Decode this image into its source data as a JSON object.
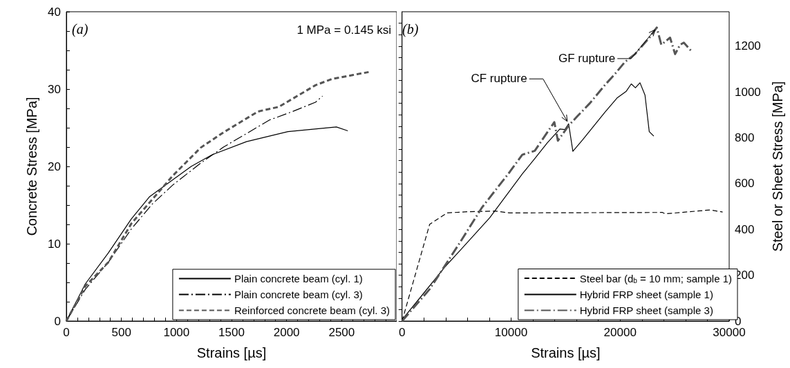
{
  "chart_data": [
    {
      "type": "line",
      "xlabel": "Strains [µs]",
      "ylabel": "Concrete Stress [MPa]",
      "annotations": [
        "(a)",
        "1 MPa = 0.145 ksi"
      ],
      "xlim": [
        0,
        3000
      ],
      "ylim": [
        0,
        40
      ],
      "legend": "bottom right",
      "grid": false,
      "marker": "none",
      "xticks": [
        0,
        {
          "value": 100,
          "label": null
        },
        {
          "value": 200,
          "label": null
        },
        {
          "value": 300,
          "label": null
        },
        {
          "value": 400,
          "label": null
        },
        500,
        {
          "value": 600,
          "label": null
        },
        {
          "value": 700,
          "label": null
        },
        {
          "value": 800,
          "label": null
        },
        {
          "value": 900,
          "label": null
        },
        1000,
        {
          "value": 1100,
          "label": null
        },
        {
          "value": 1200,
          "label": null
        },
        {
          "value": 1300,
          "label": null
        },
        {
          "value": 1400,
          "label": null
        },
        1500,
        {
          "value": 1600,
          "label": null
        },
        {
          "value": 1700,
          "label": null
        },
        {
          "value": 1800,
          "label": null
        },
        {
          "value": 1900,
          "label": null
        },
        2000,
        {
          "value": 2100,
          "label": null
        },
        {
          "value": 2200,
          "label": null
        },
        {
          "value": 2300,
          "label": null
        },
        {
          "value": 2400,
          "label": null
        },
        2500,
        {
          "value": 2600,
          "label": null
        },
        {
          "value": 2700,
          "label": null
        },
        {
          "value": 2800,
          "label": null
        },
        {
          "value": 2900,
          "label": null
        },
        {
          "value": 3000,
          "label": null
        }
      ],
      "yticks": [
        0,
        {
          "value": 2.5,
          "label": null
        },
        {
          "value": 5,
          "label": null
        },
        {
          "value": 7.5,
          "label": null
        },
        10,
        {
          "value": 12.5,
          "label": null
        },
        {
          "value": 15,
          "label": null
        },
        {
          "value": 17.5,
          "label": null
        },
        20,
        {
          "value": 22.5,
          "label": null
        },
        {
          "value": 25,
          "label": null
        },
        {
          "value": 27.5,
          "label": null
        },
        30,
        {
          "value": 32.5,
          "label": null
        },
        {
          "value": 35,
          "label": null
        },
        {
          "value": 37.5,
          "label": null
        },
        40
      ],
      "series": [
        {
          "name": "Plain concrete beam (cyl. 1)",
          "color": "#000000",
          "line_style": "solid",
          "x": [
            0,
            172,
            381,
            590,
            757,
            1134,
            1322,
            1636,
            2012,
            2452,
            2556
          ],
          "values": [
            0,
            4.8,
            8.8,
            13.2,
            16.1,
            20.0,
            21.5,
            23.2,
            24.5,
            25.1,
            24.6
          ]
        },
        {
          "name": "Plain concrete beam (cyl. 3)",
          "color": "#000000",
          "line_style": "dashdot",
          "x": [
            0,
            172,
            381,
            590,
            778,
            967,
            1218,
            1427,
            1678,
            1845,
            2054,
            2263,
            2326
          ],
          "values": [
            0,
            4.1,
            7.6,
            11.9,
            15.1,
            17.6,
            20.4,
            22.5,
            24.6,
            26.0,
            27.1,
            28.3,
            29.1
          ]
        },
        {
          "name": "Reinforced concrete beam (cyl. 3)",
          "color": "#555555",
          "line_style": "dashed",
          "x": [
            0,
            172,
            381,
            590,
            967,
            1218,
            1427,
            1741,
            1929,
            2263,
            2410,
            2745
          ],
          "values": [
            0,
            4.5,
            7.6,
            12.6,
            18.8,
            22.4,
            24.4,
            27.1,
            27.7,
            30.5,
            31.3,
            32.2
          ]
        }
      ]
    },
    {
      "type": "line",
      "xlabel": "Strains [µs]",
      "ylabel": "Steel or Sheet Stress [MPa]",
      "legend": "bottom right",
      "grid": false,
      "marker": "none",
      "annotations": [
        "(b)",
        {
          "text": "CF rupture",
          "x": 15275,
          "y": 861
        },
        {
          "text": "GF rupture",
          "x": 23360,
          "y": 1281
        }
      ],
      "xlim": [
        0,
        30000
      ],
      "ylim": [
        0,
        1350
      ],
      "xticks": [
        0,
        {
          "value": 2000,
          "label": null
        },
        {
          "value": 4000,
          "label": null
        },
        {
          "value": 6000,
          "label": null
        },
        {
          "value": 8000,
          "label": null
        },
        10000,
        {
          "value": 12000,
          "label": null
        },
        {
          "value": 14000,
          "label": null
        },
        {
          "value": 16000,
          "label": null
        },
        {
          "value": 18000,
          "label": null
        },
        20000,
        {
          "value": 22000,
          "label": null
        },
        {
          "value": 24000,
          "label": null
        },
        {
          "value": 26000,
          "label": null
        },
        {
          "value": 28000,
          "label": null
        },
        30000
      ],
      "yticks": [
        0,
        {
          "value": 50,
          "label": null
        },
        {
          "value": 100,
          "label": null
        },
        {
          "value": 150,
          "label": null
        },
        200,
        {
          "value": 250,
          "label": null
        },
        {
          "value": 300,
          "label": null
        },
        {
          "value": 350,
          "label": null
        },
        400,
        {
          "value": 450,
          "label": null
        },
        {
          "value": 500,
          "label": null
        },
        {
          "value": 550,
          "label": null
        },
        600,
        {
          "value": 650,
          "label": null
        },
        {
          "value": 700,
          "label": null
        },
        {
          "value": 750,
          "label": null
        },
        800,
        {
          "value": 850,
          "label": null
        },
        {
          "value": 900,
          "label": null
        },
        {
          "value": 950,
          "label": null
        },
        1000,
        {
          "value": 1050,
          "label": null
        },
        {
          "value": 1100,
          "label": null
        },
        {
          "value": 1150,
          "label": null
        },
        1200,
        {
          "value": 1250,
          "label": null
        },
        {
          "value": 1300,
          "label": null
        }
      ],
      "series": [
        {
          "name": "Steel bar (d$_{b}$ = 10 mm; sample 1)",
          "color": "#000000",
          "line_style": "dashed",
          "x": [
            0,
            2527,
            4136,
            5974,
            8500,
            9877,
            23890,
            24120,
            28250,
            29400
          ],
          "values": [
            0,
            422,
            472,
            477,
            480,
            472,
            474,
            468,
            485,
            476
          ]
        },
        {
          "name": "Hybrid FRP sheet (sample 1)",
          "color": "#000000",
          "line_style": "solid",
          "x": [
            0,
            1838,
            3905,
            5284,
            8040,
            11025,
            12175,
            13320,
            14470,
            14930,
            15275,
            15665,
            16540,
            18600,
            19750,
            20560,
            21020,
            21400,
            21820,
            22280,
            22670,
            23085
          ],
          "values": [
            6,
            113,
            235,
            306,
            451,
            642,
            709,
            778,
            838,
            836,
            861,
            741,
            790,
            911,
            975,
            1003,
            1035,
            1018,
            1040,
            986,
            827,
            807
          ]
        },
        {
          "name": "Hybrid FRP sheet (sample 3)",
          "color": "#555555",
          "line_style": "dashdot",
          "x": [
            0,
            2527,
            5284,
            7350,
            9877,
            11025,
            12175,
            13320,
            13965,
            14290,
            15275,
            16080,
            17230,
            18600,
            19520,
            20440,
            21360,
            22740,
            23360,
            23775,
            24580,
            25040,
            25500,
            25840,
            26640
          ],
          "values": [
            0,
            139,
            341,
            497,
            651,
            726,
            743,
            824,
            868,
            787,
            853,
            894,
            951,
            1030,
            1078,
            1131,
            1165,
            1240,
            1281,
            1206,
            1237,
            1165,
            1206,
            1215,
            1173
          ]
        }
      ]
    }
  ]
}
